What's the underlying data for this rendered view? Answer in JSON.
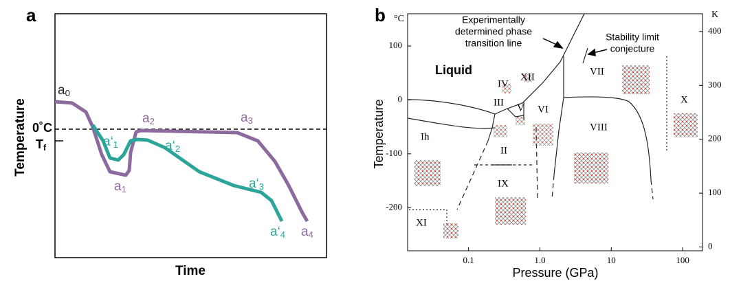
{
  "panel_a": {
    "label": "a",
    "y_label": "Temperature",
    "x_label": "Time",
    "ref_label": "0˚C",
    "tf_label": {
      "base": "T",
      "sub": "f"
    },
    "cooling_color": "#8d6a9d",
    "supercooled_color": "#2ba59a",
    "start_label": {
      "base": "a",
      "sub": "0"
    },
    "cooling_labels": [
      {
        "base": "a",
        "sub": "1"
      },
      {
        "base": "a",
        "sub": "2"
      },
      {
        "base": "a",
        "sub": "3"
      },
      {
        "base": "a",
        "sub": "4"
      }
    ],
    "supercooled_labels": [
      {
        "base": "a‘",
        "sub": "1"
      },
      {
        "base": "a‘",
        "sub": "2"
      },
      {
        "base": "a‘",
        "sub": "3"
      },
      {
        "base": "a‘",
        "sub": "4"
      }
    ]
  },
  "chart_data": {
    "type": "phase-diagram",
    "label": "b",
    "x_label": "Pressure (GPa)",
    "y_label": "Temperature",
    "y_unit": "°C",
    "y2_unit": "K",
    "xscale": "log",
    "xlim": [
      0.014,
      190
    ],
    "xticks": [
      0.1,
      {
        "value": 1,
        "label": "1.0"
      },
      10,
      100
    ],
    "ylim": [
      -280,
      160
    ],
    "yticks": [
      100,
      0,
      -100,
      -200
    ],
    "y2lim": [
      -7,
      433
    ],
    "y2ticks": [
      0,
      100,
      200,
      300,
      400
    ],
    "phases": [
      "Liquid",
      "Ih",
      "II",
      "III",
      "IV",
      "V",
      "VI",
      "VII",
      "VIII",
      "IX",
      "X",
      "XI",
      "XII"
    ],
    "annotations": [
      [
        "Experimentally",
        "determined phase",
        "transition line"
      ],
      [
        "Stability limit",
        "conjecture"
      ]
    ]
  }
}
